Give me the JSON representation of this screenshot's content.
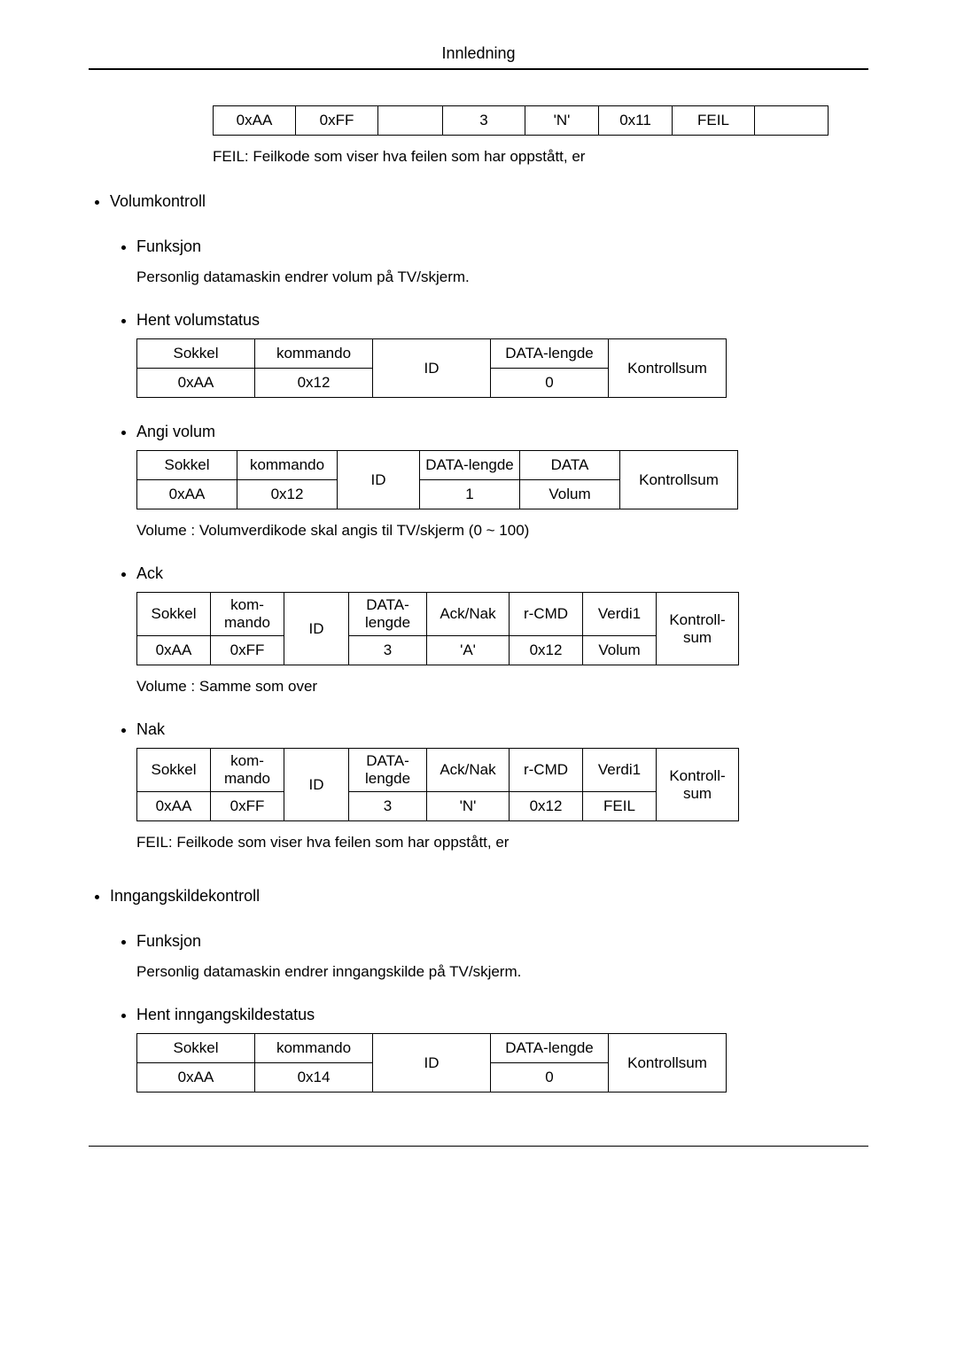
{
  "header": {
    "title": "Innledning"
  },
  "top_nak_table": {
    "widths": [
      80,
      80,
      60,
      80,
      70,
      70,
      80,
      70
    ],
    "row": [
      "0xAA",
      "0xFF",
      "",
      "3",
      "'N'",
      "0x11",
      "FEIL",
      ""
    ]
  },
  "top_nak_note": "FEIL: Feilkode som viser hva feilen som har oppstått, er",
  "volume": {
    "title": "Volumkontroll",
    "funksjon": {
      "label": "Funksjon",
      "text": "Personlig datamaskin endrer volum på TV/skjerm."
    },
    "get": {
      "label": "Hent volumstatus",
      "table": {
        "widths": [
          120,
          120,
          120,
          120,
          120
        ],
        "header": [
          "Sokkel",
          "kommando",
          "ID",
          "DATA-lengde",
          "Kontrollsum"
        ],
        "row": [
          "0xAA",
          "0x12",
          "",
          "0",
          ""
        ],
        "id_rowspan_col": 2,
        "checksum_rowspan_col": 4
      }
    },
    "set": {
      "label": "Angi volum",
      "table": {
        "widths": [
          100,
          100,
          80,
          100,
          100,
          120
        ],
        "header": [
          "Sokkel",
          "kommando",
          "ID",
          "DATA-lengde",
          "DATA",
          "Kontrollsum"
        ],
        "row": [
          "0xAA",
          "0x12",
          "",
          "1",
          "Volum",
          ""
        ],
        "id_rowspan_col": 2,
        "checksum_rowspan_col": 5
      },
      "note": "Volume : Volumverdikode skal angis til TV/skjerm (0 ~ 100)"
    },
    "ack": {
      "label": "Ack",
      "table": {
        "widths": [
          70,
          70,
          60,
          75,
          80,
          70,
          70,
          80
        ],
        "header": [
          "Sokkel",
          "kom-mando",
          "ID",
          "DATA-lengde",
          "Ack/Nak",
          "r-CMD",
          "Verdi1",
          "Kontroll-sum"
        ],
        "row": [
          "0xAA",
          "0xFF",
          "",
          "3",
          "'A'",
          "0x12",
          "Volum",
          ""
        ],
        "id_rowspan_col": 2,
        "checksum_rowspan_col": 7
      },
      "note": "Volume : Samme som over"
    },
    "nak": {
      "label": "Nak",
      "table": {
        "widths": [
          70,
          70,
          60,
          75,
          80,
          70,
          70,
          80
        ],
        "header": [
          "Sokkel",
          "kom-mando",
          "ID",
          "DATA-lengde",
          "Ack/Nak",
          "r-CMD",
          "Verdi1",
          "Kontroll-sum"
        ],
        "row": [
          "0xAA",
          "0xFF",
          "",
          "3",
          "'N'",
          "0x12",
          "FEIL",
          ""
        ],
        "id_rowspan_col": 2,
        "checksum_rowspan_col": 7
      },
      "note": "FEIL: Feilkode som viser hva feilen som har oppstått, er"
    }
  },
  "input": {
    "title": "Inngangskildekontroll",
    "funksjon": {
      "label": "Funksjon",
      "text": "Personlig datamaskin endrer inngangskilde på TV/skjerm."
    },
    "get": {
      "label": "Hent inngangskildestatus",
      "table": {
        "widths": [
          120,
          120,
          120,
          120,
          120
        ],
        "header": [
          "Sokkel",
          "kommando",
          "ID",
          "DATA-lengde",
          "Kontrollsum"
        ],
        "row": [
          "0xAA",
          "0x14",
          "",
          "0",
          ""
        ],
        "id_rowspan_col": 2,
        "checksum_rowspan_col": 4
      }
    }
  }
}
